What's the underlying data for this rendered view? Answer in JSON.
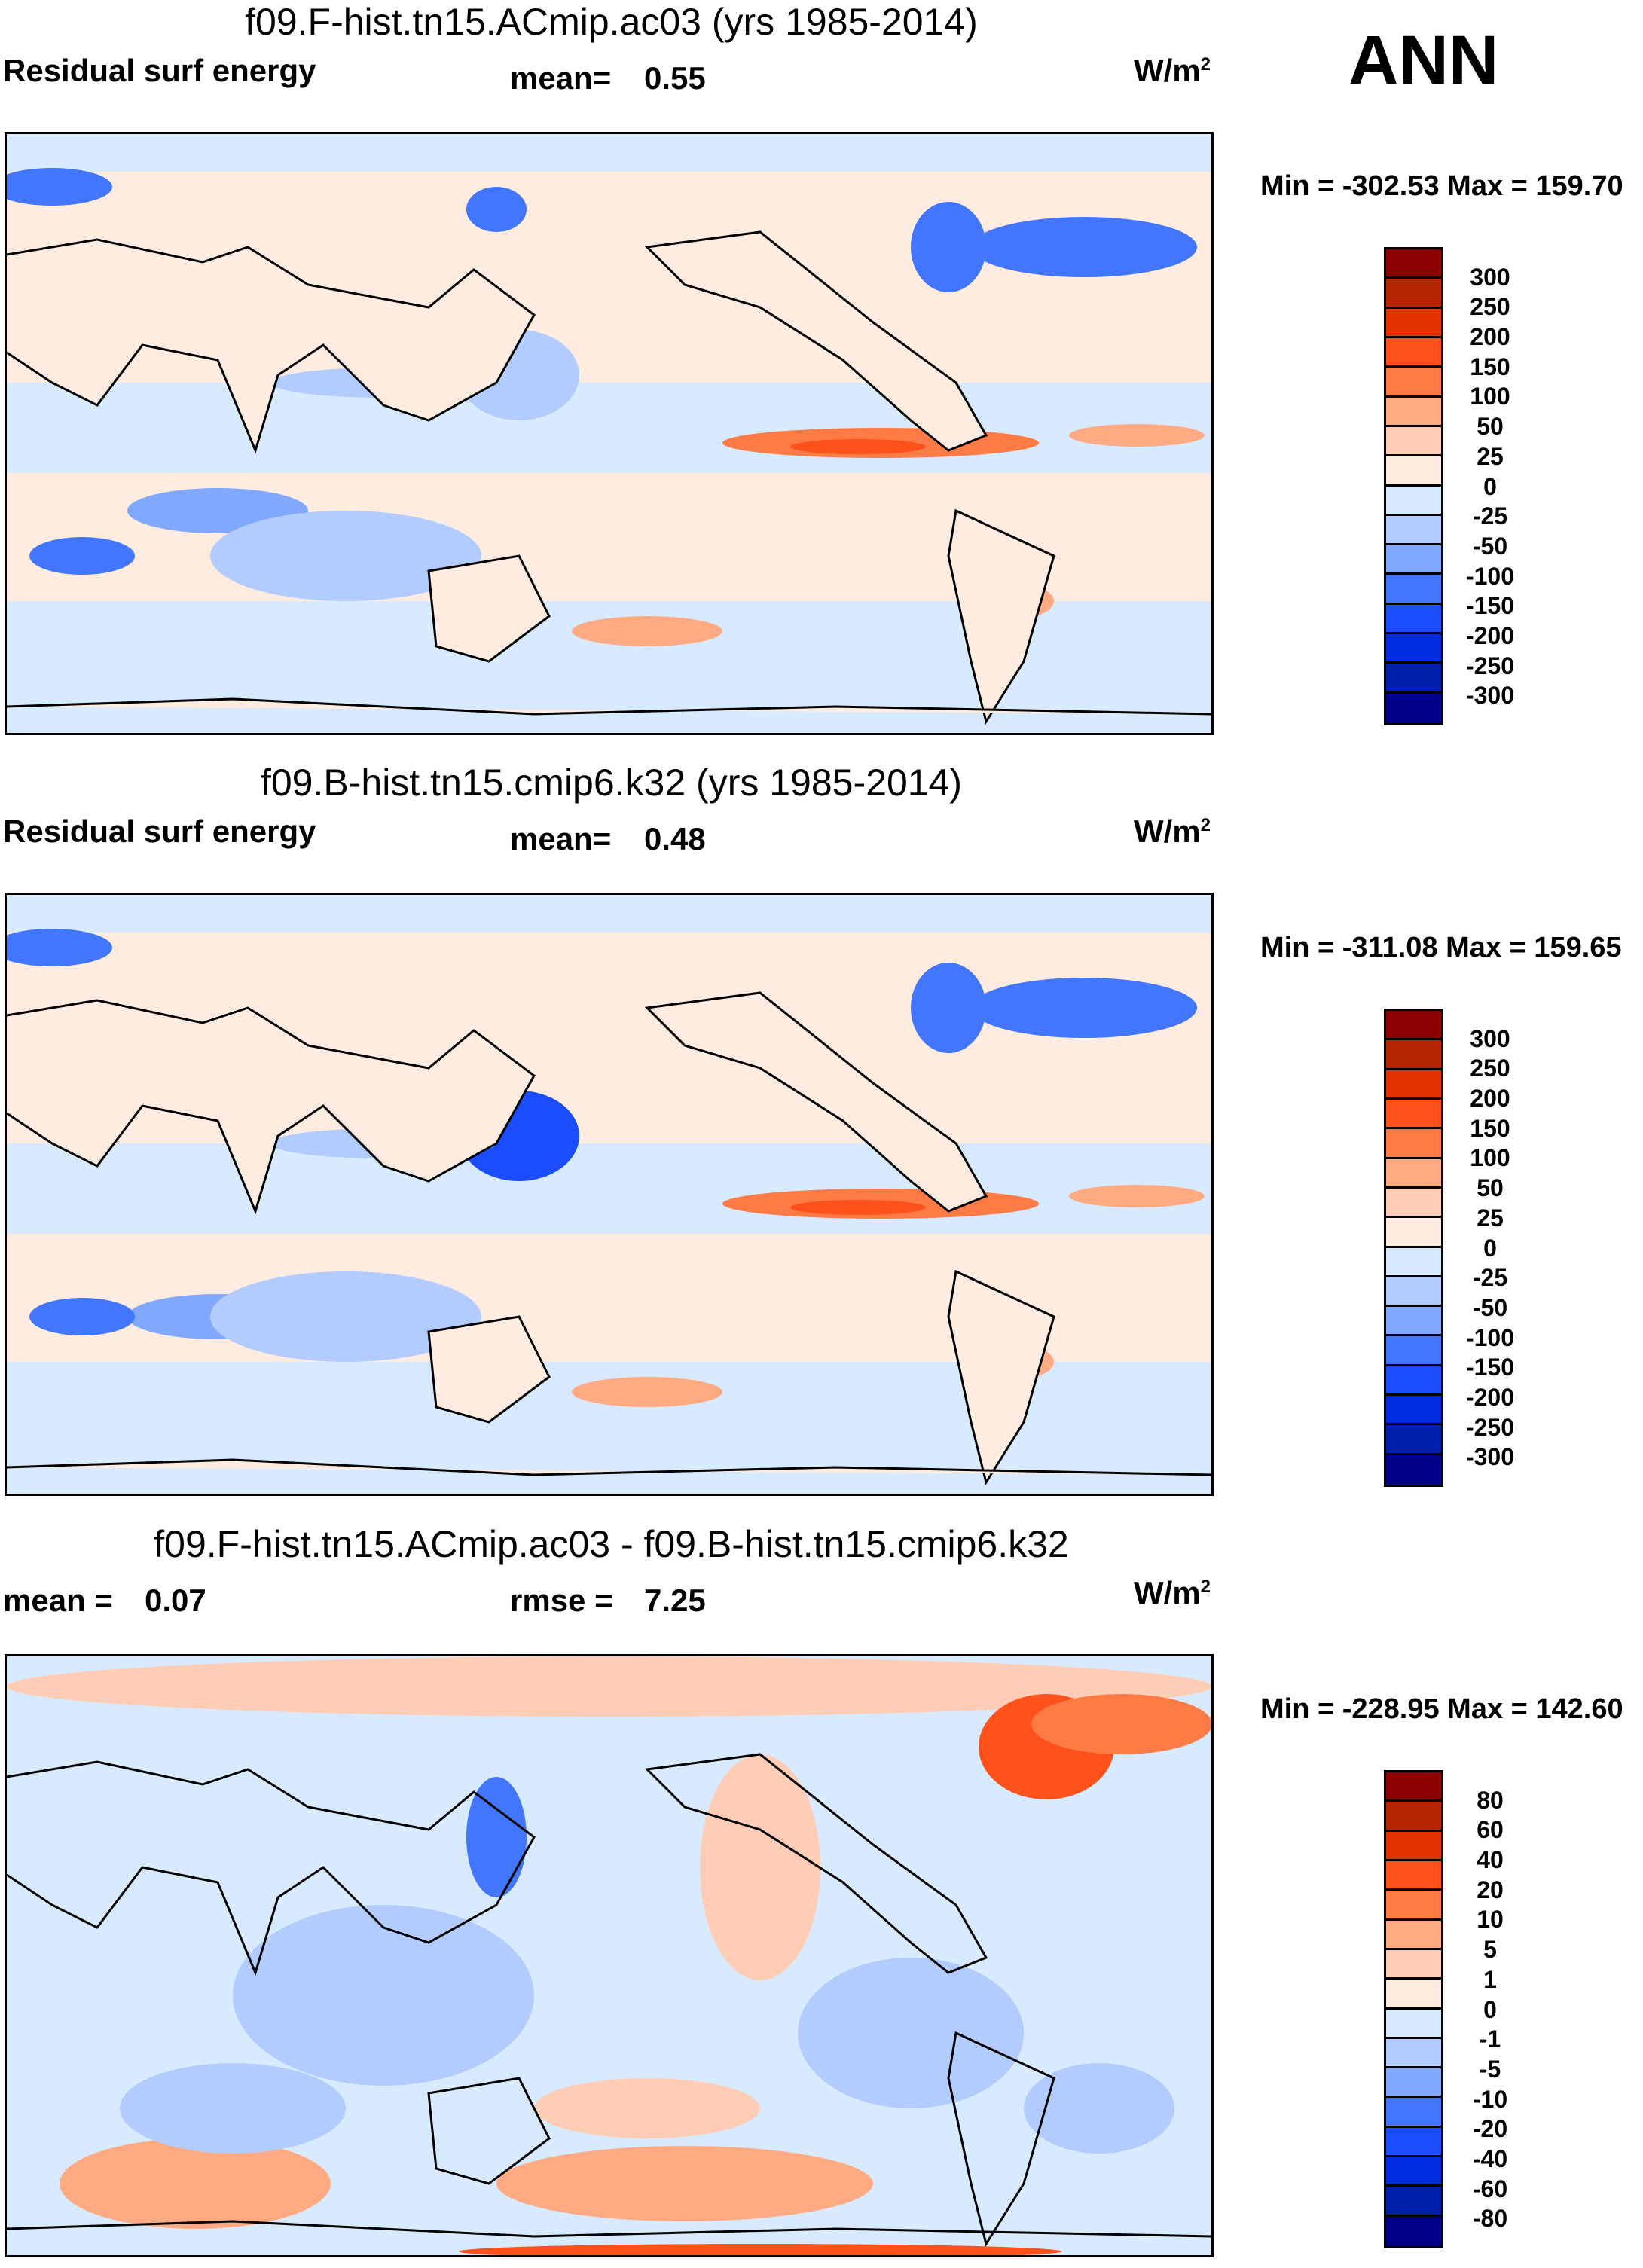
{
  "season_label": "ANN",
  "colors": [
    "#8b0000",
    "#b52300",
    "#e33400",
    "#ff5119",
    "#ff7b45",
    "#ffaa82",
    "#ffcdb5",
    "#ffece0",
    "#d7eaff",
    "#b2ccff",
    "#80a8ff",
    "#4276ff",
    "#1b4dff",
    "#002ce0",
    "#001fab",
    "#000088"
  ],
  "chart_data": [
    {
      "type": "heatmap",
      "title": "f09.F-hist.tn15.ACmip.ac03 (yrs 1985-2014)",
      "left_label": "Residual surf energy",
      "stat1_label": "mean=",
      "stat1_value": "0.55",
      "units": "W/m",
      "units_sup": "2",
      "minmax": "Min = -302.53 Max = 159.70",
      "levels": [
        "300",
        "250",
        "200",
        "150",
        "100",
        "50",
        "25",
        "0",
        "-25",
        "-50",
        "-100",
        "-150",
        "-200",
        "-250",
        "-300"
      ]
    },
    {
      "type": "heatmap",
      "title": "f09.B-hist.tn15.cmip6.k32 (yrs 1985-2014)",
      "left_label": "Residual surf energy",
      "stat1_label": "mean=",
      "stat1_value": "0.48",
      "units": "W/m",
      "units_sup": "2",
      "minmax": "Min = -311.08 Max = 159.65",
      "levels": [
        "300",
        "250",
        "200",
        "150",
        "100",
        "50",
        "25",
        "0",
        "-25",
        "-50",
        "-100",
        "-150",
        "-200",
        "-250",
        "-300"
      ]
    },
    {
      "type": "heatmap",
      "title": "f09.F-hist.tn15.ACmip.ac03 - f09.B-hist.tn15.cmip6.k32",
      "stat0_label": "mean =",
      "stat0_value": "0.07",
      "stat1_label": "rmse =",
      "stat1_value": "7.25",
      "units": "W/m",
      "units_sup": "2",
      "minmax": "Min = -228.95 Max = 142.60",
      "levels": [
        "80",
        "60",
        "40",
        "20",
        "10",
        "5",
        "1",
        "0",
        "-1",
        "-5",
        "-10",
        "-20",
        "-40",
        "-60",
        "-80"
      ]
    }
  ]
}
